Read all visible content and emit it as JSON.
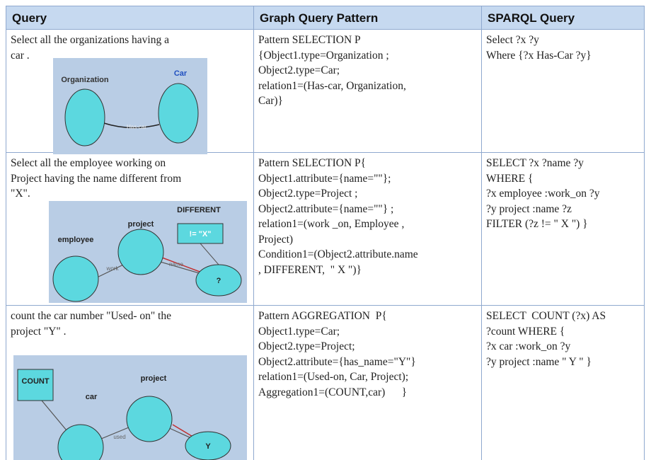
{
  "table": {
    "headers": [
      "Query",
      "Graph Query Pattern",
      "SPARQL Query"
    ],
    "rows": [
      {
        "query": [
          "Select all the organizations having a",
          "car ."
        ],
        "diagram": {
          "labels": [
            "Organization",
            "Car",
            "Has-car"
          ]
        },
        "pattern": [
          "Pattern SELECTION P",
          "{Object1.type=Organization ;",
          "Object2.type=Car;",
          "relation1=(Has-car, Organization,",
          "Car)}"
        ],
        "sparql": [
          "Select ?x ?y",
          "Where {?x Has-Car ?y}"
        ]
      },
      {
        "query": [
          "Select all the employee working on",
          "Project having the name different from",
          "\"X\"."
        ],
        "diagram": {
          "labels": [
            "DIFFERENT",
            "project",
            "!= \"X\"",
            "employee",
            "?",
            "work",
            "name"
          ]
        },
        "pattern": [
          "Pattern SELECTION P{",
          "Object1.attribute={name=\"\"};",
          "Object2.type=Project ;",
          "Object2.attribute={name=\"\"} ;",
          "relation1=(work _on, Employee ,",
          "Project)",
          "Condition1=(Object2.attribute.name",
          ", DIFFERENT,  \" X \")}"
        ],
        "sparql": [
          "SELECT ?x ?name ?y",
          "WHERE {",
          "?x employee :work_on ?y",
          "?y project :name ?z",
          "FILTER (?z != \" X \") }"
        ]
      },
      {
        "query": [
          "count the car number \"Used- on\" the",
          "project \"Y\" ."
        ],
        "diagram": {
          "labels": [
            "COUNT",
            "project",
            "car",
            "Y",
            "used"
          ]
        },
        "pattern": [
          "Pattern AGGREGATION  P{",
          "Object1.type=Car;",
          "Object2.type=Project;",
          "Object2.attribute={has_name=\"Y\"}",
          "relation1=(Used-on, Car, Project);",
          "Aggregation1=(COUNT,car)      }"
        ],
        "sparql": [
          "SELECT  COUNT (?x) AS",
          "?count WHERE {",
          "?x car :work_on ?y",
          "?y project :name \" Y \" }"
        ]
      }
    ]
  }
}
